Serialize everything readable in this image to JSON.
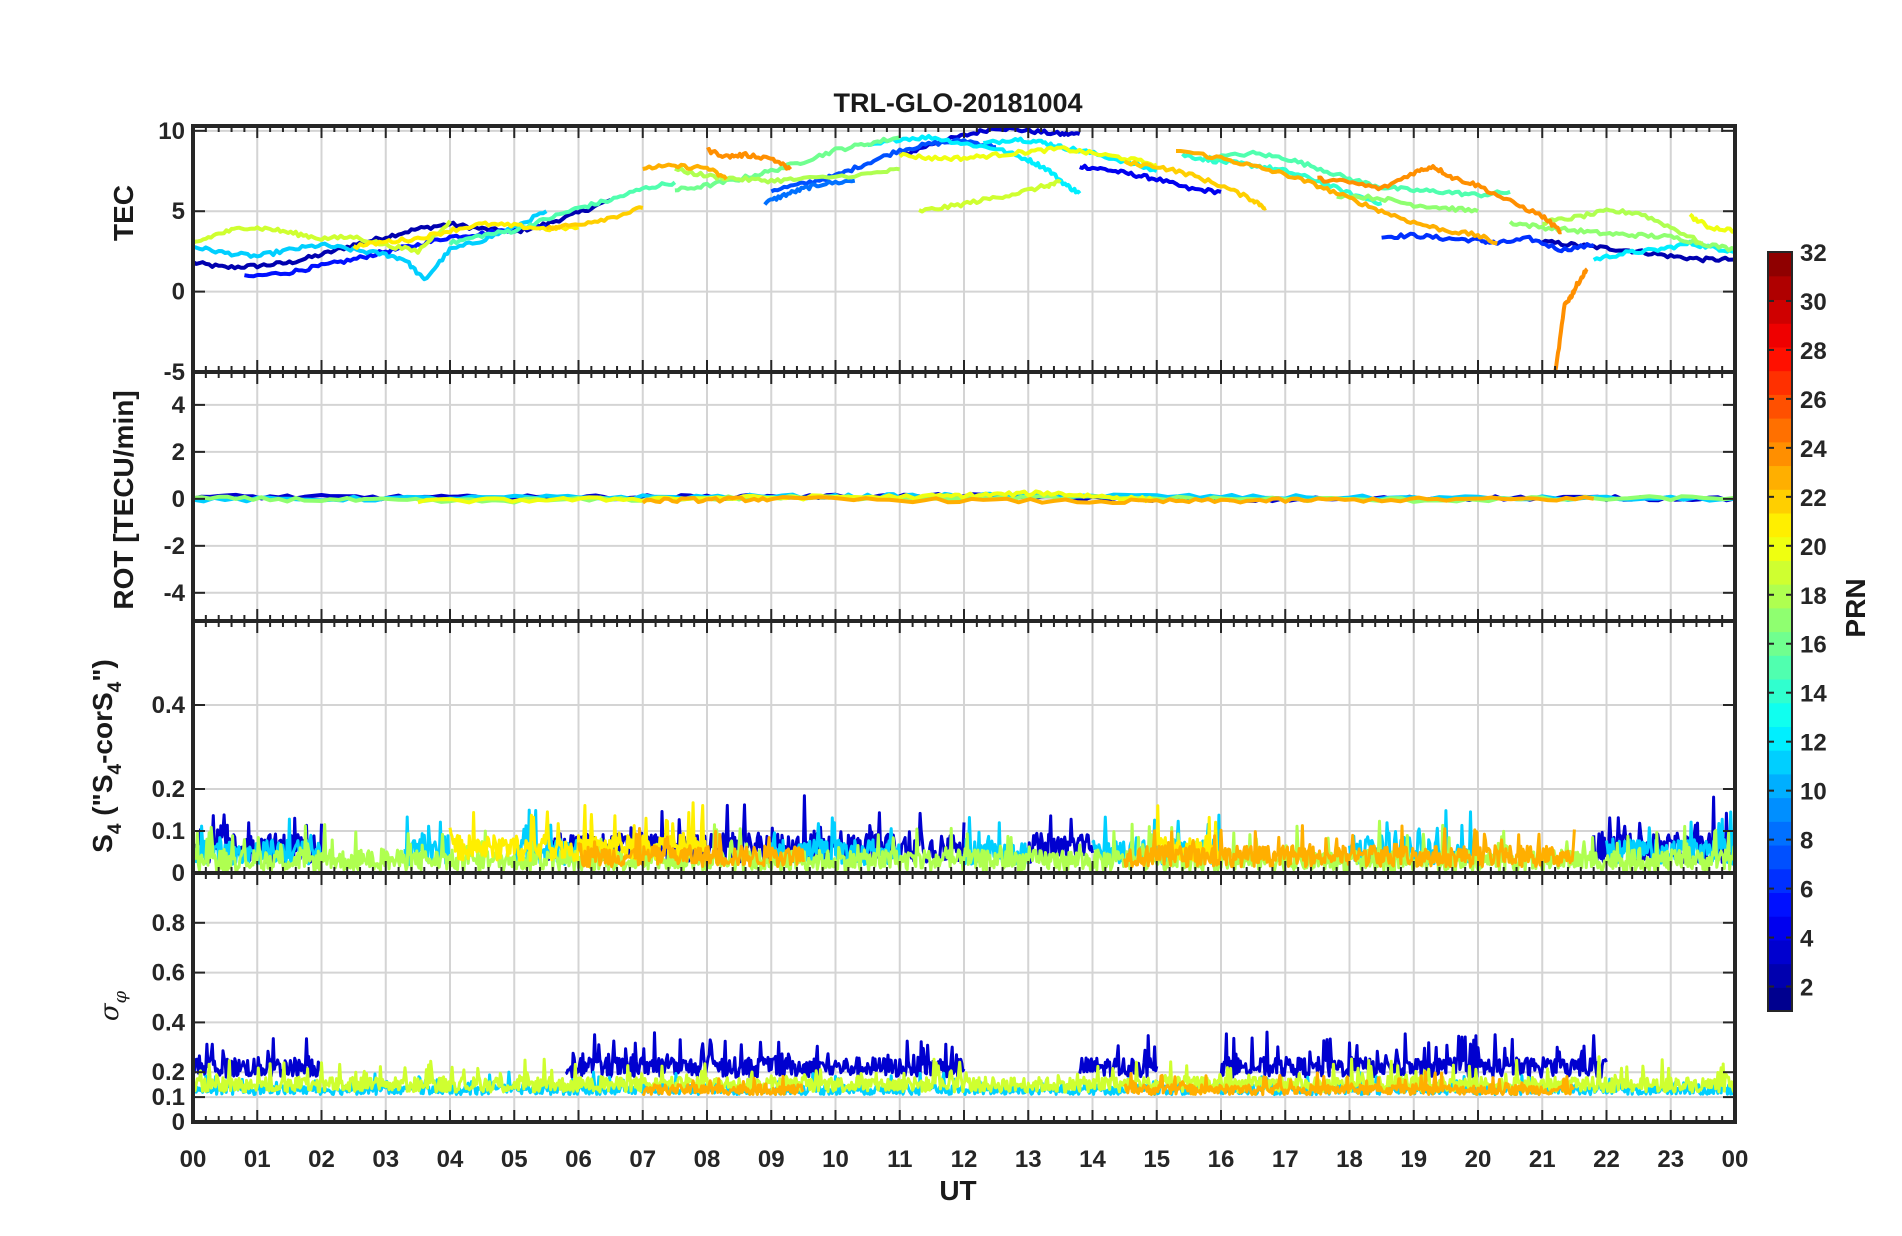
{
  "chart_data": {
    "type": "line",
    "title": "TRL-GLO-20181004",
    "xlabel": "UT",
    "x_tick_labels": [
      "00",
      "01",
      "02",
      "03",
      "04",
      "05",
      "06",
      "07",
      "08",
      "09",
      "10",
      "11",
      "12",
      "13",
      "14",
      "15",
      "16",
      "17",
      "18",
      "19",
      "20",
      "21",
      "22",
      "23",
      "00"
    ],
    "xlim": [
      0,
      24
    ],
    "colorbar": {
      "label": "PRN",
      "range": [
        1,
        32
      ],
      "tick_labels": [
        "2",
        "4",
        "6",
        "8",
        "10",
        "12",
        "14",
        "16",
        "18",
        "20",
        "22",
        "24",
        "26",
        "28",
        "30",
        "32"
      ],
      "tick_values": [
        2,
        4,
        6,
        8,
        10,
        12,
        14,
        16,
        18,
        20,
        22,
        24,
        26,
        28,
        30,
        32
      ],
      "colormap": "jet"
    },
    "panels": [
      {
        "id": "tec",
        "ylabel": "TEC",
        "ylim": [
          -5,
          10.3
        ],
        "yticks": [
          -5,
          0,
          5,
          10
        ],
        "ytick_labels": [
          "-5",
          "0",
          "5",
          "10"
        ],
        "series": [
          {
            "prn": 2,
            "x": [
              0.0,
              0.5,
              1.0,
              1.5,
              2.0,
              2.5,
              3.0,
              3.5,
              4.0,
              4.5,
              5.0,
              5.5,
              6.0,
              6.5
            ],
            "y": [
              1.8,
              1.5,
              1.6,
              1.8,
              2.3,
              2.9,
              3.4,
              3.9,
              4.2,
              3.9,
              3.7,
              4.2,
              4.9,
              5.7
            ]
          },
          {
            "prn": 3,
            "x": [
              11.0,
              11.5,
              12.0,
              12.5,
              13.0,
              13.5,
              13.8
            ],
            "y": [
              8.4,
              9.2,
              9.7,
              10.2,
              10.0,
              9.8,
              9.8
            ]
          },
          {
            "prn": 4,
            "x": [
              13.8,
              14.2,
              14.6,
              15.0,
              15.5,
              16.0
            ],
            "y": [
              7.8,
              7.6,
              7.3,
              7.0,
              6.4,
              6.2
            ]
          },
          {
            "prn": 2,
            "x": [
              21.0,
              21.5,
              22.0,
              22.5,
              23.0,
              23.5,
              24.0
            ],
            "y": [
              3.1,
              2.9,
              2.7,
              2.5,
              2.2,
              2.0,
              2.0
            ]
          },
          {
            "prn": 5,
            "x": [
              0.8,
              1.5,
              2.0,
              2.5,
              3.0,
              3.5,
              4.0,
              4.5,
              5.0,
              5.5
            ],
            "y": [
              0.9,
              1.2,
              1.6,
              2.0,
              2.5,
              2.9,
              3.4,
              3.6,
              3.9,
              4.1
            ]
          },
          {
            "prn": 6,
            "x": [
              18.5,
              19.0,
              19.5,
              20.0,
              20.3,
              20.8,
              21.3,
              21.8
            ],
            "y": [
              3.4,
              3.5,
              3.3,
              3.2,
              3.0,
              3.3,
              2.6,
              2.9
            ]
          },
          {
            "prn": 7,
            "x": [
              9.0,
              9.5,
              10.0,
              10.5,
              11.0,
              11.5,
              12.0,
              12.5
            ],
            "y": [
              6.3,
              6.7,
              7.2,
              8.0,
              8.8,
              9.2,
              9.4,
              9.0
            ]
          },
          {
            "prn": 8,
            "x": [
              8.9,
              9.2,
              9.5,
              9.8,
              10.3
            ],
            "y": [
              5.5,
              6.0,
              6.4,
              6.7,
              6.9
            ]
          },
          {
            "prn": 11,
            "x": [
              0.0,
              0.5,
              1.0,
              1.5,
              2.0,
              2.5,
              3.0,
              3.3,
              3.6,
              4.0,
              4.5,
              5.0,
              5.5
            ],
            "y": [
              2.8,
              2.4,
              2.2,
              2.6,
              2.9,
              2.6,
              2.3,
              2.0,
              0.7,
              2.6,
              3.2,
              4.0,
              5.0
            ]
          },
          {
            "prn": 12,
            "x": [
              10.5,
              11.0,
              11.5,
              12.0,
              12.5,
              13.0,
              13.3,
              13.6,
              13.8
            ],
            "y": [
              9.0,
              9.5,
              9.6,
              9.2,
              8.9,
              8.2,
              7.6,
              6.6,
              6.1
            ]
          },
          {
            "prn": 12,
            "x": [
              12.3,
              12.8,
              13.2,
              13.5,
              13.9,
              14.5,
              15.0
            ],
            "y": [
              9.2,
              9.5,
              9.3,
              9.0,
              8.7,
              8.1,
              7.5
            ]
          },
          {
            "prn": 12,
            "x": [
              21.8,
              22.3,
              22.8,
              23.3,
              23.7,
              24.0
            ],
            "y": [
              2.0,
              2.4,
              2.6,
              3.0,
              2.7,
              2.5
            ]
          },
          {
            "prn": 14,
            "x": [
              15.4,
              15.8,
              16.2,
              16.6,
              17.0,
              17.5,
              18.0,
              18.5
            ],
            "y": [
              8.5,
              8.2,
              8.0,
              7.8,
              7.5,
              6.9,
              6.1,
              5.5
            ]
          },
          {
            "prn": 15,
            "x": [
              4.0,
              4.5,
              5.0,
              5.5,
              6.0,
              6.5,
              7.0,
              7.5
            ],
            "y": [
              3.0,
              3.5,
              3.8,
              4.5,
              5.2,
              5.7,
              6.4,
              6.8
            ]
          },
          {
            "prn": 15,
            "x": [
              15.8,
              16.5,
              17.0,
              17.5,
              18.0,
              18.5,
              19.0,
              19.5,
              20.0,
              20.5
            ],
            "y": [
              8.3,
              8.6,
              8.3,
              7.7,
              7.0,
              6.5,
              6.3,
              6.2,
              6.0,
              6.2
            ]
          },
          {
            "prn": 16,
            "x": [
              7.5,
              8.0,
              8.5,
              9.0,
              9.5,
              10.0,
              10.5,
              11.0
            ],
            "y": [
              6.3,
              6.6,
              7.0,
              7.5,
              8.1,
              8.8,
              9.2,
              9.6
            ]
          },
          {
            "prn": 17,
            "x": [
              20.5,
              21.0,
              21.5,
              22.0,
              22.5,
              23.0,
              23.5,
              24.0
            ],
            "y": [
              4.3,
              4.0,
              3.8,
              3.6,
              3.5,
              3.4,
              3.0,
              2.6
            ]
          },
          {
            "prn": 17,
            "x": [
              17.8,
              18.5,
              19.0,
              19.5,
              20.0
            ],
            "y": [
              6.0,
              5.8,
              5.4,
              5.2,
              5.0
            ]
          },
          {
            "prn": 18,
            "x": [
              21.0,
              21.5,
              22.0,
              22.5,
              23.0,
              23.5
            ],
            "y": [
              4.3,
              4.6,
              5.0,
              4.9,
              4.0,
              3.0
            ]
          },
          {
            "prn": 18,
            "x": [
              7.5,
              8.0,
              8.5,
              9.0,
              9.5,
              10.5,
              11.0
            ],
            "y": [
              7.6,
              7.2,
              7.0,
              6.9,
              7.0,
              7.3,
              7.6
            ]
          },
          {
            "prn": 19,
            "x": [
              11.3,
              11.8,
              12.3,
              12.8,
              13.3,
              13.5
            ],
            "y": [
              5.0,
              5.3,
              5.7,
              6.1,
              6.6,
              6.8
            ]
          },
          {
            "prn": 19,
            "x": [
              0.0,
              0.4,
              0.8,
              1.2,
              1.6,
              2.0,
              2.5,
              3.0,
              3.5,
              4.0
            ],
            "y": [
              3.0,
              3.6,
              4.0,
              3.9,
              3.6,
              3.3,
              3.4,
              2.9,
              2.5,
              4.4
            ]
          },
          {
            "prn": 20,
            "x": [
              11.0,
              11.5,
              12.0,
              12.5,
              13.0,
              13.5,
              14.0,
              14.5,
              15.0
            ],
            "y": [
              8.5,
              8.3,
              8.3,
              8.5,
              8.7,
              8.9,
              8.6,
              8.3,
              7.9
            ]
          },
          {
            "prn": 20,
            "x": [
              23.3,
              23.6,
              24.0
            ],
            "y": [
              4.7,
              4.0,
              3.8
            ]
          },
          {
            "prn": 21,
            "x": [
              2.5,
              3.0,
              3.5,
              4.0,
              4.5,
              5.0,
              5.5,
              6.0
            ],
            "y": [
              2.8,
              3.1,
              3.3,
              3.8,
              4.2,
              4.1,
              3.9,
              4.0
            ]
          },
          {
            "prn": 22,
            "x": [
              14.5,
              15.0,
              15.5,
              16.0,
              16.5,
              16.7
            ],
            "y": [
              8.0,
              7.8,
              7.3,
              6.6,
              5.7,
              5.2
            ]
          },
          {
            "prn": 22,
            "x": [
              5.5,
              6.0,
              6.5,
              7.0
            ],
            "y": [
              3.9,
              4.2,
              4.6,
              5.2
            ]
          },
          {
            "prn": 23,
            "x": [
              7.0,
              7.5,
              8.0,
              8.3
            ],
            "y": [
              7.7,
              7.8,
              7.7,
              7.0
            ]
          },
          {
            "prn": 23,
            "x": [
              15.3,
              16.0,
              16.5,
              17.0,
              17.5,
              18.0,
              18.5,
              19.0,
              19.5,
              20.0,
              20.3
            ],
            "y": [
              8.8,
              8.3,
              7.8,
              7.3,
              6.6,
              5.8,
              5.0,
              4.3,
              3.8,
              3.5,
              3.0
            ]
          },
          {
            "prn": 24,
            "x": [
              8.0,
              8.3,
              8.6,
              9.0,
              9.3
            ],
            "y": [
              8.8,
              8.4,
              8.5,
              8.3,
              7.6
            ]
          },
          {
            "prn": 24,
            "x": [
              17.5,
              18.0,
              18.5,
              19.0,
              19.3,
              19.6,
              20.0,
              20.5,
              21.0,
              21.3
            ],
            "y": [
              7.0,
              6.8,
              6.4,
              7.4,
              7.8,
              7.1,
              6.6,
              5.6,
              4.7,
              3.7
            ]
          },
          {
            "prn": 24,
            "x": [
              21.2,
              21.35,
              21.45,
              21.55,
              21.7
            ],
            "y": [
              -5.2,
              -0.8,
              -0.3,
              0.5,
              1.4
            ]
          }
        ]
      },
      {
        "id": "rot",
        "ylabel": "ROT [TECU/min]",
        "ylim": [
          -5.2,
          5.4
        ],
        "yticks": [
          -4,
          -2,
          0,
          2,
          4
        ],
        "ytick_labels": [
          "-4",
          "-2",
          "0",
          "2",
          "4"
        ],
        "series": [
          {
            "prn": 3,
            "x": [
              0,
              4,
              8,
              12,
              16,
              20,
              24
            ],
            "y": [
              0.1,
              0.05,
              0.08,
              0.12,
              -0.05,
              0.04,
              0.02
            ]
          },
          {
            "prn": 11,
            "x": [
              0,
              5,
              10,
              13,
              18,
              24
            ],
            "y": [
              -0.05,
              0.05,
              0.1,
              0.15,
              0.05,
              0.0
            ]
          },
          {
            "prn": 17,
            "x": [
              0,
              4,
              9,
              13.5,
              19,
              24
            ],
            "y": [
              0.02,
              -0.1,
              0.05,
              0.05,
              -0.05,
              0.05
            ]
          },
          {
            "prn": 20,
            "x": [
              3.5,
              7.5,
              11.5,
              13.3,
              15
            ],
            "y": [
              -0.1,
              0.02,
              0.1,
              0.25,
              -0.05
            ]
          },
          {
            "prn": 23,
            "x": [
              7.0,
              9.0,
              14.5,
              17.5,
              21.8
            ],
            "y": [
              -0.08,
              0.0,
              -0.12,
              -0.05,
              0.0
            ]
          }
        ]
      },
      {
        "id": "s4",
        "ylabel": "S4 (\"S4-corS4\")",
        "ylabel_parts": {
          "s1": "S",
          "sub1": "4",
          "mid": " (\"S",
          "sub2": "4",
          "mid2": "-corS",
          "sub3": "4",
          "end": "\")"
        },
        "ylim": [
          0,
          0.6
        ],
        "yticks": [
          0,
          0.1,
          0.2,
          0.4
        ],
        "ytick_labels": [
          "0",
          "0.1",
          "0.2",
          "0.4"
        ],
        "series": [
          {
            "prn": 3,
            "x": [
              0,
              2,
              5.5,
              12,
              13,
              14,
              21.8,
              24
            ],
            "mean": 0.06,
            "amp": 0.07
          },
          {
            "prn": 11,
            "x": [
              0,
              2,
              3.3,
              4,
              5,
              6,
              9,
              11,
              12,
              13,
              14,
              16,
              18,
              20,
              22,
              24
            ],
            "mean": 0.05,
            "amp": 0.06
          },
          {
            "prn": 18,
            "x": [
              0,
              24
            ],
            "mean": 0.03,
            "amp": 0.05
          },
          {
            "prn": 21,
            "x": [
              4,
              8,
              15,
              16
            ],
            "mean": 0.06,
            "amp": 0.06
          },
          {
            "prn": 23,
            "x": [
              6,
              9.5,
              14.5,
              21.5
            ],
            "mean": 0.04,
            "amp": 0.05
          }
        ]
      },
      {
        "id": "sigma",
        "ylabel": "σφ",
        "ylabel_parts": {
          "main": "σ",
          "sub": "φ"
        },
        "ylim": [
          0,
          1.0
        ],
        "yticks": [
          0,
          0.1,
          0.2,
          0.4,
          0.6,
          0.8
        ],
        "ytick_labels": [
          "0",
          "0.1",
          "0.2",
          "0.4",
          "0.6",
          "0.8"
        ],
        "series": [
          {
            "prn": 3,
            "x": [
              0,
              2,
              5.8,
              12,
              13.8,
              15,
              16,
              22,
              24
            ],
            "mean": 0.22,
            "amp": 0.08
          },
          {
            "prn": 11,
            "x": [
              0,
              24
            ],
            "mean": 0.13,
            "amp": 0.04
          },
          {
            "prn": 19,
            "x": [
              0,
              24
            ],
            "mean": 0.15,
            "amp": 0.06
          },
          {
            "prn": 23,
            "x": [
              7,
              9.5,
              14.5,
              21.5
            ],
            "mean": 0.13,
            "amp": 0.04
          }
        ]
      }
    ]
  }
}
